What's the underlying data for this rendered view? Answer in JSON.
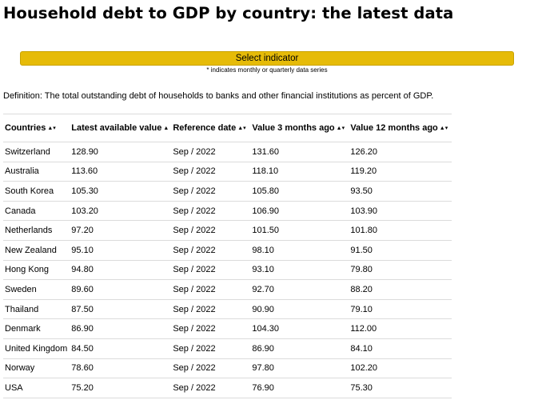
{
  "page": {
    "title": "Household debt to GDP by country: the latest data"
  },
  "indicator": {
    "button_label": "Select indicator",
    "note": "* indicates monthly or quarterly data series"
  },
  "definition": "Definition: The total outstanding debt of households to banks and other financial institutions as percent of GDP.",
  "table": {
    "headers": [
      {
        "label": "Countries",
        "arrows": "▲▾"
      },
      {
        "label": "Latest available value",
        "arrows": "▲"
      },
      {
        "label": "Reference date",
        "arrows": "▲▾"
      },
      {
        "label": "Value 3 months ago",
        "arrows": "▲▾"
      },
      {
        "label": "Value 12 months ago",
        "arrows": "▲▾"
      }
    ],
    "rows": [
      {
        "country": "Switzerland",
        "latest": "128.90",
        "date": "Sep / 2022",
        "v3": "131.60",
        "v12": "126.20"
      },
      {
        "country": "Australia",
        "latest": "113.60",
        "date": "Sep / 2022",
        "v3": "118.10",
        "v12": "119.20"
      },
      {
        "country": "South Korea",
        "latest": "105.30",
        "date": "Sep / 2022",
        "v3": "105.80",
        "v12": "93.50"
      },
      {
        "country": "Canada",
        "latest": "103.20",
        "date": "Sep / 2022",
        "v3": "106.90",
        "v12": "103.90"
      },
      {
        "country": "Netherlands",
        "latest": "97.20",
        "date": "Sep / 2022",
        "v3": "101.50",
        "v12": "101.80"
      },
      {
        "country": "New Zealand",
        "latest": "95.10",
        "date": "Sep / 2022",
        "v3": "98.10",
        "v12": "91.50"
      },
      {
        "country": "Hong Kong",
        "latest": "94.80",
        "date": "Sep / 2022",
        "v3": "93.10",
        "v12": "79.80"
      },
      {
        "country": "Sweden",
        "latest": "89.60",
        "date": "Sep / 2022",
        "v3": "92.70",
        "v12": "88.20"
      },
      {
        "country": "Thailand",
        "latest": "87.50",
        "date": "Sep / 2022",
        "v3": "90.90",
        "v12": "79.10"
      },
      {
        "country": "Denmark",
        "latest": "86.90",
        "date": "Sep / 2022",
        "v3": "104.30",
        "v12": "112.00"
      },
      {
        "country": "United Kingdom",
        "latest": "84.50",
        "date": "Sep / 2022",
        "v3": "86.90",
        "v12": "84.10"
      },
      {
        "country": "Norway",
        "latest": "78.60",
        "date": "Sep / 2022",
        "v3": "97.80",
        "v12": "102.20"
      },
      {
        "country": "USA",
        "latest": "75.20",
        "date": "Sep / 2022",
        "v3": "76.90",
        "v12": "75.30"
      }
    ]
  }
}
